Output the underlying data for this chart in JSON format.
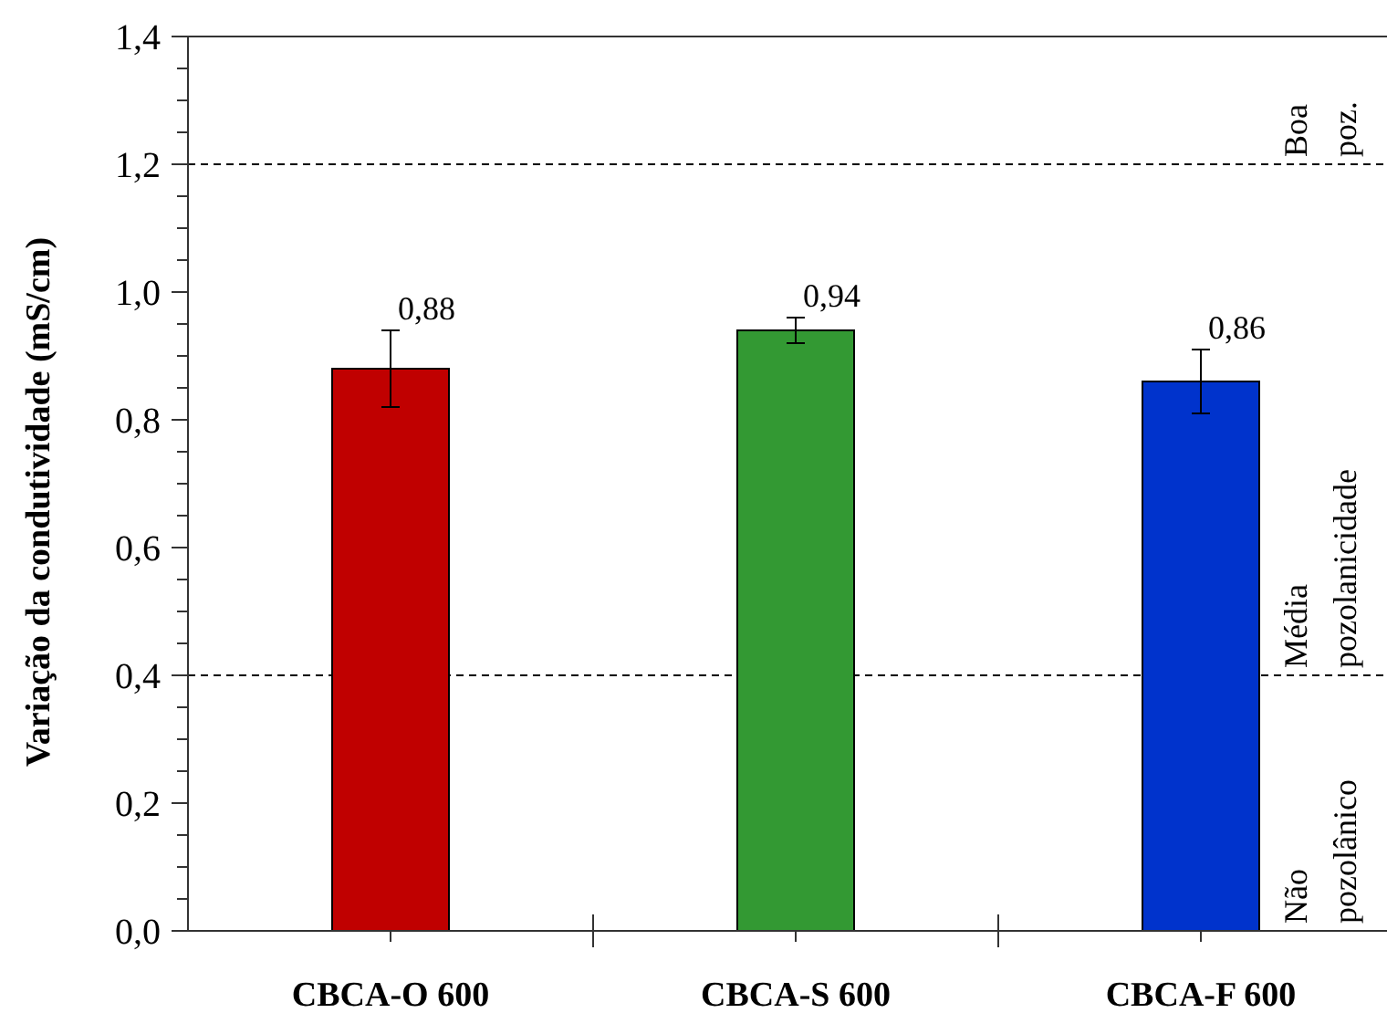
{
  "chart_data": {
    "type": "bar",
    "ylabel": "Variação da condutividade  (mS/cm)",
    "categories": [
      "CBCA-O 600",
      "CBCA-S 600",
      "CBCA-F 600"
    ],
    "values": [
      0.88,
      0.94,
      0.86
    ],
    "colors": [
      "#c00000",
      "#339933",
      "#0033cc"
    ],
    "errors": [
      0.06,
      0.02,
      0.05
    ],
    "value_labels": [
      "0,88",
      "0,94",
      "0,86"
    ],
    "ylim": [
      0,
      1.4
    ],
    "yticks": [
      {
        "value": 0,
        "label": "0,0"
      },
      {
        "value": 0.05,
        "label": null
      },
      {
        "value": 0.1,
        "label": null
      },
      {
        "value": 0.15,
        "label": null
      },
      {
        "value": 0.2,
        "label": "0,2"
      },
      {
        "value": 0.25,
        "label": null
      },
      {
        "value": 0.3,
        "label": null
      },
      {
        "value": 0.35,
        "label": null
      },
      {
        "value": 0.4,
        "label": "0,4"
      },
      {
        "value": 0.45,
        "label": null
      },
      {
        "value": 0.5,
        "label": null
      },
      {
        "value": 0.55,
        "label": null
      },
      {
        "value": 0.6,
        "label": "0,6"
      },
      {
        "value": 0.65,
        "label": null
      },
      {
        "value": 0.7,
        "label": null
      },
      {
        "value": 0.75,
        "label": null
      },
      {
        "value": 0.8,
        "label": "0,8"
      },
      {
        "value": 0.85,
        "label": null
      },
      {
        "value": 0.9,
        "label": null
      },
      {
        "value": 0.95,
        "label": null
      },
      {
        "value": 1.0,
        "label": "1,0"
      },
      {
        "value": 1.05,
        "label": null
      },
      {
        "value": 1.1,
        "label": null
      },
      {
        "value": 1.15,
        "label": null
      },
      {
        "value": 1.2,
        "label": "1,2"
      },
      {
        "value": 1.25,
        "label": null
      },
      {
        "value": 1.3,
        "label": null
      },
      {
        "value": 1.35,
        "label": null
      },
      {
        "value": 1.4,
        "label": "1,4"
      }
    ],
    "ref_lines": [
      {
        "axis": "y",
        "value": 0.4,
        "line_style": "dashed",
        "color": "#000000"
      },
      {
        "axis": "y",
        "value": 1.2,
        "line_style": "dashed",
        "color": "#000000"
      }
    ],
    "annotations": [
      "Não pozolânico",
      "Média pozolanicidade",
      "Boa poz."
    ]
  }
}
